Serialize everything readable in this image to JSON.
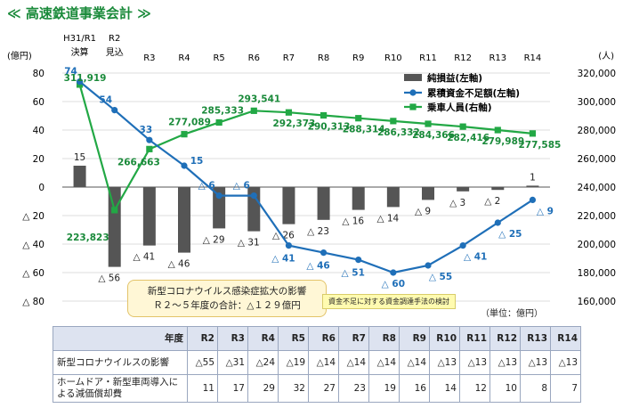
{
  "title": "≪ 高速鉄道事業会計 ≫",
  "chart_data": {
    "type": "bar+line",
    "categories": [
      "H31/R1 決算",
      "R2 見込",
      "R3",
      "R4",
      "R5",
      "R6",
      "R7",
      "R8",
      "R9",
      "R10",
      "R11",
      "R12",
      "R13",
      "R14"
    ],
    "category_top": [
      "H31/R1",
      "R2",
      "R3",
      "R4",
      "R5",
      "R6",
      "R7",
      "R8",
      "R9",
      "R10",
      "R11",
      "R12",
      "R13",
      "R14"
    ],
    "category_bottom": [
      "決算",
      "見込",
      "",
      "",
      "",
      "",
      "",
      "",
      "",
      "",
      "",
      "",
      "",
      ""
    ],
    "left_axis": {
      "label": "(億円)",
      "min": -80,
      "max": 80,
      "ticks": [
        80,
        60,
        40,
        20,
        0,
        -20,
        -40,
        -60,
        -80
      ],
      "tick_labels": [
        "80",
        "60",
        "40",
        "20",
        "0",
        "△ 20",
        "△ 40",
        "△ 60",
        "△ 80"
      ]
    },
    "right_axis": {
      "label": "(人)",
      "min": 160000,
      "max": 320000,
      "ticks": [
        320000,
        300000,
        280000,
        260000,
        240000,
        220000,
        200000,
        180000,
        160000
      ],
      "tick_labels": [
        "320,000",
        "300,000",
        "280,000",
        "260,000",
        "240,000",
        "220,000",
        "200,000",
        "180,000",
        "160,000"
      ]
    },
    "series": [
      {
        "name": "純損益(左軸)",
        "type": "bar",
        "axis": "left",
        "color": "#555555",
        "values": [
          15,
          -56,
          -41,
          -46,
          -29,
          -31,
          -26,
          -23,
          -16,
          -14,
          -9,
          -3,
          -2,
          1
        ],
        "labels": [
          "15",
          "△ 56",
          "△ 41",
          "△ 46",
          "△ 29",
          "△ 31",
          "△ 26",
          "△ 23",
          "△ 16",
          "△ 14",
          "△ 9",
          "△ 3",
          "△ 2",
          "1"
        ]
      },
      {
        "name": "累積資金不足額(左軸)",
        "type": "line",
        "axis": "left",
        "color": "#1f6fb8",
        "values": [
          74,
          54,
          33,
          15,
          -6,
          -6,
          -41,
          -46,
          -51,
          -60,
          -55,
          -41,
          -25,
          -9
        ],
        "labels": [
          "74",
          "54",
          "33",
          "15",
          "△ 6",
          "△ 6",
          "△ 41",
          "△ 46",
          "△ 51",
          "△ 60",
          "△ 55",
          "△ 41",
          "△ 25",
          "△ 9"
        ]
      },
      {
        "name": "乗車人員(右軸)",
        "type": "line",
        "axis": "right",
        "color": "#22a845",
        "values": [
          311919,
          223823,
          266663,
          277089,
          285333,
          293541,
          292373,
          290313,
          288314,
          286332,
          284366,
          282416,
          279989,
          277585
        ],
        "labels": [
          "311,919",
          "223,823",
          "266,663",
          "277,089",
          "285,333",
          "293,541",
          "292,373",
          "290,313",
          "288,314",
          "286,332",
          "284,366",
          "282,416",
          "279,989",
          "277,585"
        ]
      }
    ]
  },
  "note": {
    "line1": "新型コロナウイルス感染症拡大の影響",
    "line2": "Ｒ２～５年度の合計：△１２９億円"
  },
  "note2": "資金不足に対する資金調達手法の検討",
  "unit": "（単位：億円）",
  "table": {
    "header_label": "年度",
    "columns": [
      "R2",
      "R3",
      "R4",
      "R5",
      "R6",
      "R7",
      "R8",
      "R9",
      "R10",
      "R11",
      "R12",
      "R13",
      "R14"
    ],
    "rows": [
      {
        "label": "新型コロナウイルスの影響",
        "values": [
          "△55",
          "△31",
          "△24",
          "△19",
          "△14",
          "△14",
          "△14",
          "△14",
          "△13",
          "△13",
          "△13",
          "△13",
          "△13"
        ]
      },
      {
        "label": "ホームドア・新型車両導入による減価償却費",
        "values": [
          "11",
          "17",
          "29",
          "32",
          "27",
          "23",
          "19",
          "16",
          "14",
          "12",
          "10",
          "8",
          "7"
        ]
      }
    ]
  }
}
